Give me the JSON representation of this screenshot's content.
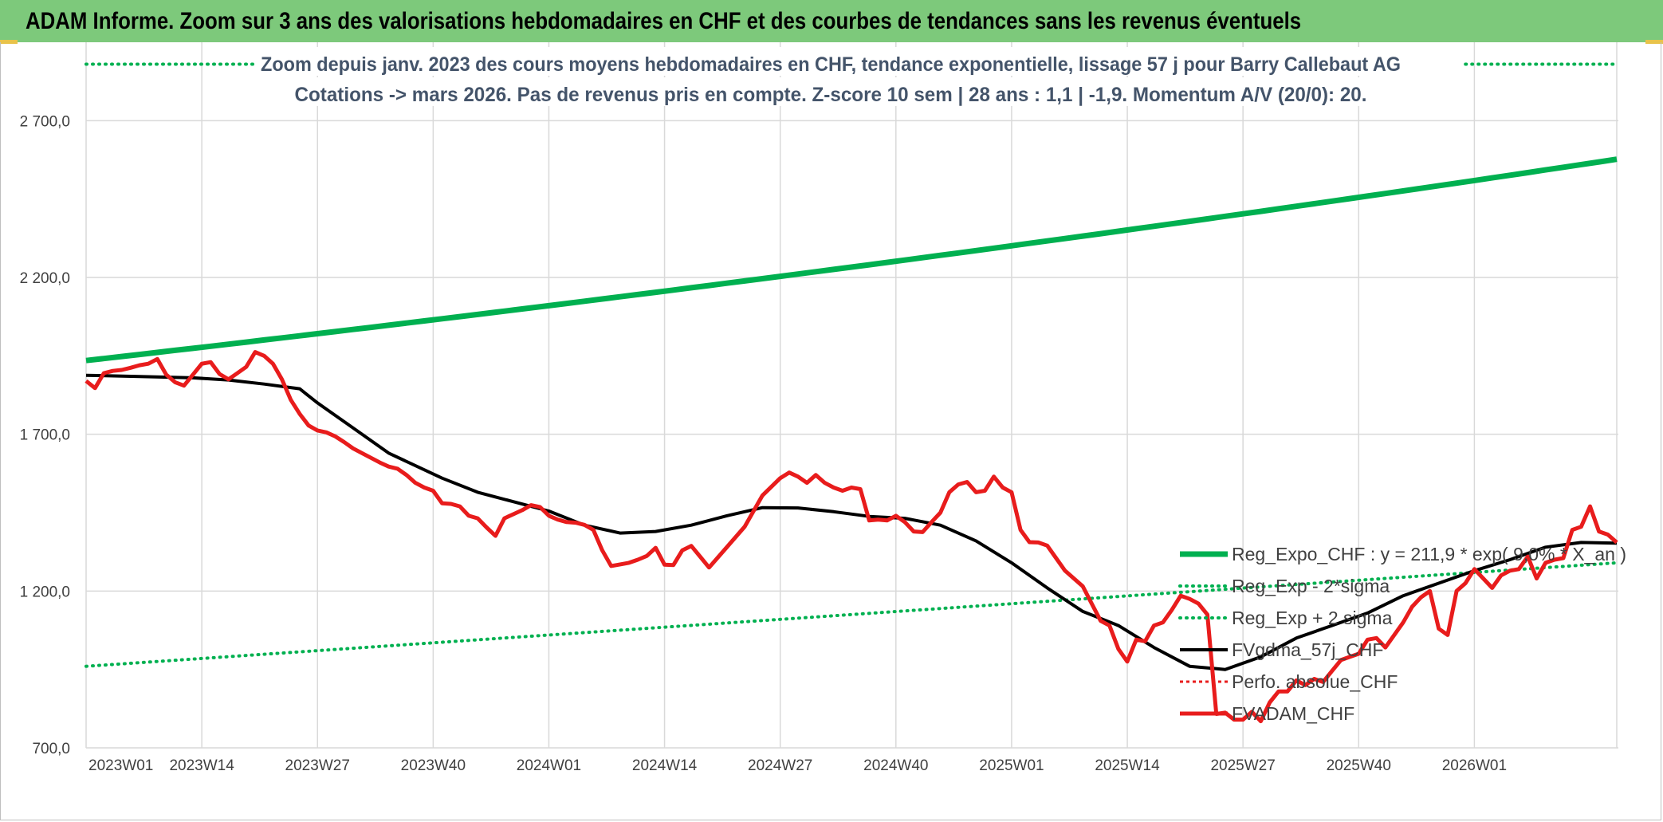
{
  "header": {
    "banner": "ADAM Informe. Zoom sur 3 ans des valorisations hebdomadaires en CHF et des courbes de tendances sans les revenus éventuels"
  },
  "colors": {
    "banner_bg": "#7dc97b",
    "reg_expo": "#00b050",
    "sigma_bands": "#00b050",
    "fvgdma": "#000000",
    "fvadam": "#e81c1c",
    "perfo": "#e81c1c",
    "title_text": "#44546a"
  },
  "chart_data": {
    "type": "line",
    "title_lines": [
      "Zoom depuis janv. 2023 des cours moyens hebdomadaires en CHF, tendance exponentielle, lissage 57 j pour Barry Callebaut AG",
      "Cotations -> mars 2026. Pas de revenus pris en compte. Z-score 10 sem | 28 ans : 1,1 | -1,9. Momentum A/V (20/0): 20."
    ],
    "x_ticks": [
      "2023W01",
      "2023W14",
      "2023W27",
      "2023W40",
      "2024W01",
      "2024W14",
      "2024W27",
      "2024W40",
      "2025W01",
      "2025W14",
      "2025W27",
      "2025W40",
      "2026W01"
    ],
    "x_tick_index": [
      0,
      13,
      26,
      39,
      52,
      65,
      78,
      91,
      104,
      117,
      130,
      143,
      156
    ],
    "x_range": [
      0,
      172
    ],
    "y_ticks": [
      "700,0",
      "1 200,0",
      "1 700,0",
      "2 200,0",
      "2 700,0"
    ],
    "y_tick_values": [
      700,
      1200,
      1700,
      2200,
      2700
    ],
    "ylim": [
      700,
      2950
    ],
    "grid": true,
    "legend_position": "lower-right",
    "series": [
      {
        "name": "Reg_Expo_CHF : y = 211,9 * exp( 9,0% * X_an )",
        "style": "solid-thick",
        "points": [
          [
            0,
            1935
          ],
          [
            172,
            2577
          ]
        ]
      },
      {
        "name": "Reg_Exp - 2*sigma",
        "style": "dotted",
        "points": [
          [
            0,
            960
          ],
          [
            172,
            1290
          ]
        ]
      },
      {
        "name": "Reg_Exp + 2 sigma",
        "style": "dotted",
        "points": [
          [
            0,
            2880
          ],
          [
            172,
            2880
          ]
        ]
      },
      {
        "name": "FVgdma_57j_CHF",
        "style": "solid",
        "points": [
          [
            0,
            1888
          ],
          [
            6,
            1884
          ],
          [
            12,
            1880
          ],
          [
            16,
            1873
          ],
          [
            20,
            1860
          ],
          [
            24,
            1845
          ],
          [
            26,
            1800
          ],
          [
            30,
            1720
          ],
          [
            34,
            1640
          ],
          [
            40,
            1560
          ],
          [
            44,
            1515
          ],
          [
            48,
            1485
          ],
          [
            52,
            1455
          ],
          [
            56,
            1410
          ],
          [
            60,
            1385
          ],
          [
            64,
            1390
          ],
          [
            68,
            1410
          ],
          [
            72,
            1440
          ],
          [
            76,
            1466
          ],
          [
            80,
            1465
          ],
          [
            84,
            1453
          ],
          [
            88,
            1438
          ],
          [
            92,
            1432
          ],
          [
            96,
            1410
          ],
          [
            100,
            1360
          ],
          [
            104,
            1290
          ],
          [
            108,
            1210
          ],
          [
            112,
            1135
          ],
          [
            116,
            1090
          ],
          [
            120,
            1020
          ],
          [
            124,
            960
          ],
          [
            128,
            950
          ],
          [
            132,
            990
          ],
          [
            136,
            1050
          ],
          [
            140,
            1090
          ],
          [
            144,
            1130
          ],
          [
            148,
            1185
          ],
          [
            152,
            1225
          ],
          [
            156,
            1265
          ],
          [
            160,
            1300
          ],
          [
            164,
            1340
          ],
          [
            168,
            1355
          ],
          [
            172,
            1353
          ]
        ]
      },
      {
        "name": "Perfo. absolue_CHF",
        "style": "dashed",
        "points": []
      },
      {
        "name": "FVADAM_CHF",
        "style": "solid-thick",
        "points": [
          [
            0,
            1870
          ],
          [
            1,
            1847
          ],
          [
            2,
            1895
          ],
          [
            3,
            1902
          ],
          [
            4,
            1905
          ],
          [
            5,
            1912
          ],
          [
            6,
            1920
          ],
          [
            7,
            1925
          ],
          [
            8,
            1940
          ],
          [
            9,
            1890
          ],
          [
            10,
            1866
          ],
          [
            11,
            1855
          ],
          [
            12,
            1890
          ],
          [
            13,
            1925
          ],
          [
            14,
            1930
          ],
          [
            15,
            1892
          ],
          [
            16,
            1875
          ],
          [
            17,
            1895
          ],
          [
            18,
            1915
          ],
          [
            19,
            1962
          ],
          [
            20,
            1950
          ],
          [
            21,
            1925
          ],
          [
            22,
            1875
          ],
          [
            23,
            1810
          ],
          [
            24,
            1765
          ],
          [
            25,
            1728
          ],
          [
            26,
            1712
          ],
          [
            27,
            1706
          ],
          [
            28,
            1693
          ],
          [
            29,
            1675
          ],
          [
            30,
            1655
          ],
          [
            31,
            1640
          ],
          [
            32,
            1625
          ],
          [
            33,
            1610
          ],
          [
            34,
            1597
          ],
          [
            35,
            1590
          ],
          [
            36,
            1570
          ],
          [
            37,
            1545
          ],
          [
            38,
            1530
          ],
          [
            39,
            1520
          ],
          [
            40,
            1480
          ],
          [
            41,
            1478
          ],
          [
            42,
            1470
          ],
          [
            43,
            1440
          ],
          [
            44,
            1432
          ],
          [
            45,
            1403
          ],
          [
            46,
            1376
          ],
          [
            47,
            1432
          ],
          [
            48,
            1445
          ],
          [
            49,
            1458
          ],
          [
            50,
            1474
          ],
          [
            51,
            1468
          ],
          [
            52,
            1440
          ],
          [
            53,
            1428
          ],
          [
            54,
            1420
          ],
          [
            55,
            1418
          ],
          [
            56,
            1411
          ],
          [
            57,
            1395
          ],
          [
            58,
            1330
          ],
          [
            59,
            1280
          ],
          [
            60,
            1285
          ],
          [
            61,
            1290
          ],
          [
            62,
            1300
          ],
          [
            63,
            1312
          ],
          [
            64,
            1338
          ],
          [
            65,
            1284
          ],
          [
            66,
            1283
          ],
          [
            67,
            1330
          ],
          [
            68,
            1344
          ],
          [
            69,
            1310
          ],
          [
            70,
            1275
          ],
          [
            72,
            1340
          ],
          [
            74,
            1405
          ],
          [
            76,
            1505
          ],
          [
            78,
            1560
          ],
          [
            79,
            1578
          ],
          [
            80,
            1565
          ],
          [
            81,
            1545
          ],
          [
            82,
            1570
          ],
          [
            83,
            1545
          ],
          [
            84,
            1530
          ],
          [
            85,
            1520
          ],
          [
            86,
            1530
          ],
          [
            87,
            1525
          ],
          [
            88,
            1425
          ],
          [
            89,
            1428
          ],
          [
            90,
            1425
          ],
          [
            91,
            1440
          ],
          [
            92,
            1420
          ],
          [
            93,
            1390
          ],
          [
            94,
            1388
          ],
          [
            95,
            1420
          ],
          [
            96,
            1450
          ],
          [
            97,
            1515
          ],
          [
            98,
            1540
          ],
          [
            99,
            1548
          ],
          [
            100,
            1515
          ],
          [
            101,
            1520
          ],
          [
            102,
            1565
          ],
          [
            103,
            1530
          ],
          [
            104,
            1515
          ],
          [
            105,
            1395
          ],
          [
            106,
            1356
          ],
          [
            107,
            1355
          ],
          [
            108,
            1345
          ],
          [
            109,
            1305
          ],
          [
            110,
            1265
          ],
          [
            111,
            1240
          ],
          [
            112,
            1215
          ],
          [
            113,
            1160
          ],
          [
            114,
            1105
          ],
          [
            115,
            1090
          ],
          [
            116,
            1015
          ],
          [
            117,
            975
          ],
          [
            118,
            1045
          ],
          [
            119,
            1040
          ],
          [
            120,
            1090
          ],
          [
            121,
            1100
          ],
          [
            122,
            1140
          ],
          [
            123,
            1185
          ],
          [
            124,
            1175
          ],
          [
            125,
            1160
          ],
          [
            126,
            1125
          ],
          [
            127,
            808
          ],
          [
            128,
            812
          ],
          [
            129,
            790
          ],
          [
            130,
            790
          ],
          [
            131,
            815
          ],
          [
            132,
            785
          ],
          [
            133,
            845
          ],
          [
            134,
            880
          ],
          [
            135,
            880
          ],
          [
            136,
            915
          ],
          [
            137,
            900
          ],
          [
            138,
            920
          ],
          [
            139,
            910
          ],
          [
            140,
            945
          ],
          [
            141,
            980
          ],
          [
            142,
            990
          ],
          [
            143,
            1000
          ],
          [
            144,
            1045
          ],
          [
            145,
            1050
          ],
          [
            146,
            1020
          ],
          [
            147,
            1060
          ],
          [
            148,
            1100
          ],
          [
            149,
            1150
          ],
          [
            150,
            1180
          ],
          [
            151,
            1200
          ],
          [
            152,
            1080
          ],
          [
            153,
            1060
          ],
          [
            154,
            1200
          ],
          [
            155,
            1225
          ],
          [
            156,
            1270
          ],
          [
            157,
            1240
          ],
          [
            158,
            1210
          ],
          [
            159,
            1250
          ],
          [
            160,
            1265
          ],
          [
            161,
            1270
          ],
          [
            162,
            1310
          ],
          [
            163,
            1240
          ],
          [
            164,
            1290
          ],
          [
            165,
            1300
          ],
          [
            166,
            1305
          ],
          [
            167,
            1395
          ],
          [
            168,
            1405
          ],
          [
            169,
            1470
          ],
          [
            170,
            1390
          ],
          [
            171,
            1380
          ],
          [
            172,
            1355
          ]
        ]
      }
    ]
  }
}
